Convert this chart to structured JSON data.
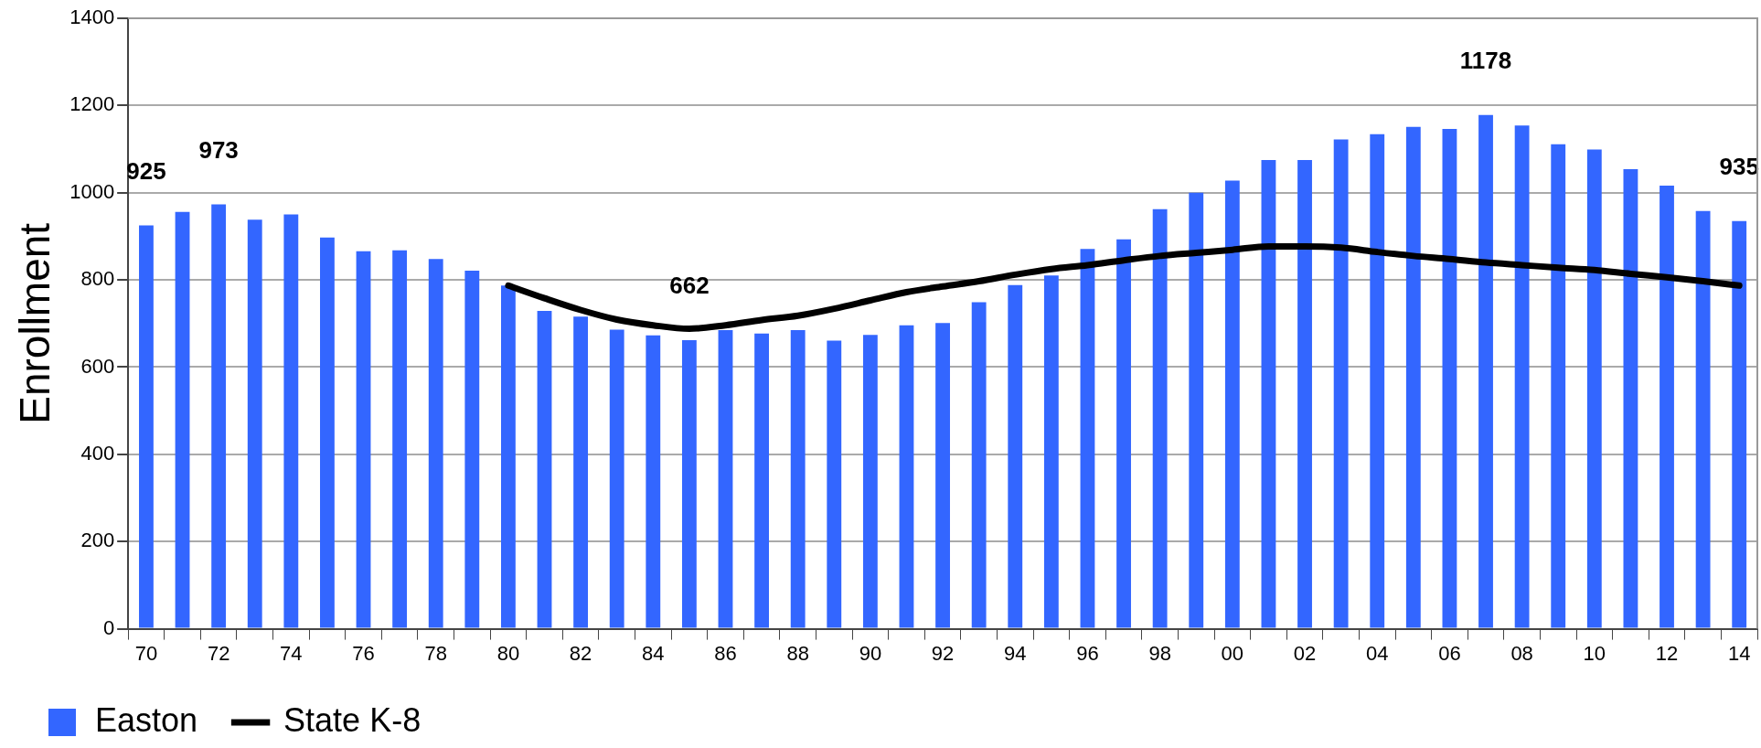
{
  "chart_data": {
    "type": "bar",
    "ylabel": "Enrollment",
    "categories": [
      "70",
      null,
      "72",
      null,
      "74",
      null,
      "76",
      null,
      "78",
      null,
      "80",
      null,
      "82",
      null,
      "84",
      null,
      "86",
      null,
      "88",
      null,
      "90",
      null,
      "92",
      null,
      "94",
      null,
      "96",
      null,
      "98",
      null,
      "00",
      null,
      "02",
      null,
      "04",
      null,
      "06",
      null,
      "08",
      null,
      "10",
      null,
      "12",
      null,
      "14"
    ],
    "series": [
      {
        "name": "Easton",
        "color": "#3366ff",
        "values": [
          925,
          956,
          973,
          938,
          950,
          897,
          866,
          868,
          848,
          821,
          787,
          729,
          716,
          686,
          673,
          662,
          685,
          677,
          685,
          661,
          674,
          696,
          701,
          749,
          788,
          810,
          871,
          893,
          962,
          1000,
          1028,
          1075,
          1075,
          1122,
          1134,
          1151,
          1146,
          1178,
          1154,
          1111,
          1099,
          1054,
          1016,
          958,
          935
        ],
        "value_labels": [
          "925",
          null,
          "973",
          null,
          null,
          null,
          null,
          null,
          null,
          null,
          null,
          null,
          null,
          null,
          null,
          "662",
          null,
          null,
          null,
          null,
          null,
          null,
          null,
          null,
          null,
          null,
          null,
          null,
          null,
          null,
          null,
          null,
          null,
          null,
          null,
          null,
          null,
          "1178",
          null,
          null,
          null,
          null,
          null,
          null,
          "935"
        ]
      },
      {
        "name": "State K-8",
        "type": "line",
        "color": "#000000",
        "values": [
          null,
          null,
          null,
          null,
          null,
          null,
          null,
          null,
          null,
          null,
          787,
          758,
          731,
          709,
          696,
          688,
          696,
          708,
          718,
          734,
          753,
          772,
          785,
          797,
          812,
          825,
          834,
          845,
          855,
          862,
          869,
          877,
          877,
          874,
          864,
          855,
          848,
          840,
          834,
          828,
          823,
          814,
          806,
          797,
          787
        ]
      }
    ],
    "ylim": [
      0,
      1400
    ],
    "yticks": [
      0,
      200,
      400,
      600,
      800,
      1000,
      1200,
      1400
    ],
    "grid": "y",
    "legend": "bottom",
    "marker": "none",
    "line_style": "solid"
  }
}
